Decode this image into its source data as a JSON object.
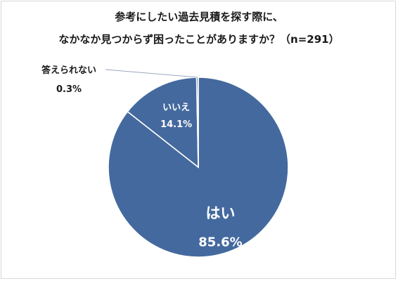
{
  "title_line1": "参考にしたい過去見積を探す際に、",
  "title_line2": "なかなか見つからず困ったことがありますか？（n=291）",
  "colors": {
    "slice": "#44699e",
    "slice_edge": "#ffffff",
    "leader": "#9aa8bf"
  },
  "chart_data": {
    "type": "pie",
    "title": "参考にしたい過去見積を探す際に、なかなか見つからず困ったことがありますか？（n=291）",
    "categories": [
      "はい",
      "いいえ",
      "答えられない"
    ],
    "values": [
      85.6,
      14.1,
      0.3
    ],
    "value_labels": [
      "85.6%",
      "14.1%",
      "0.3%"
    ],
    "start": "12 o'clock, clockwise"
  }
}
